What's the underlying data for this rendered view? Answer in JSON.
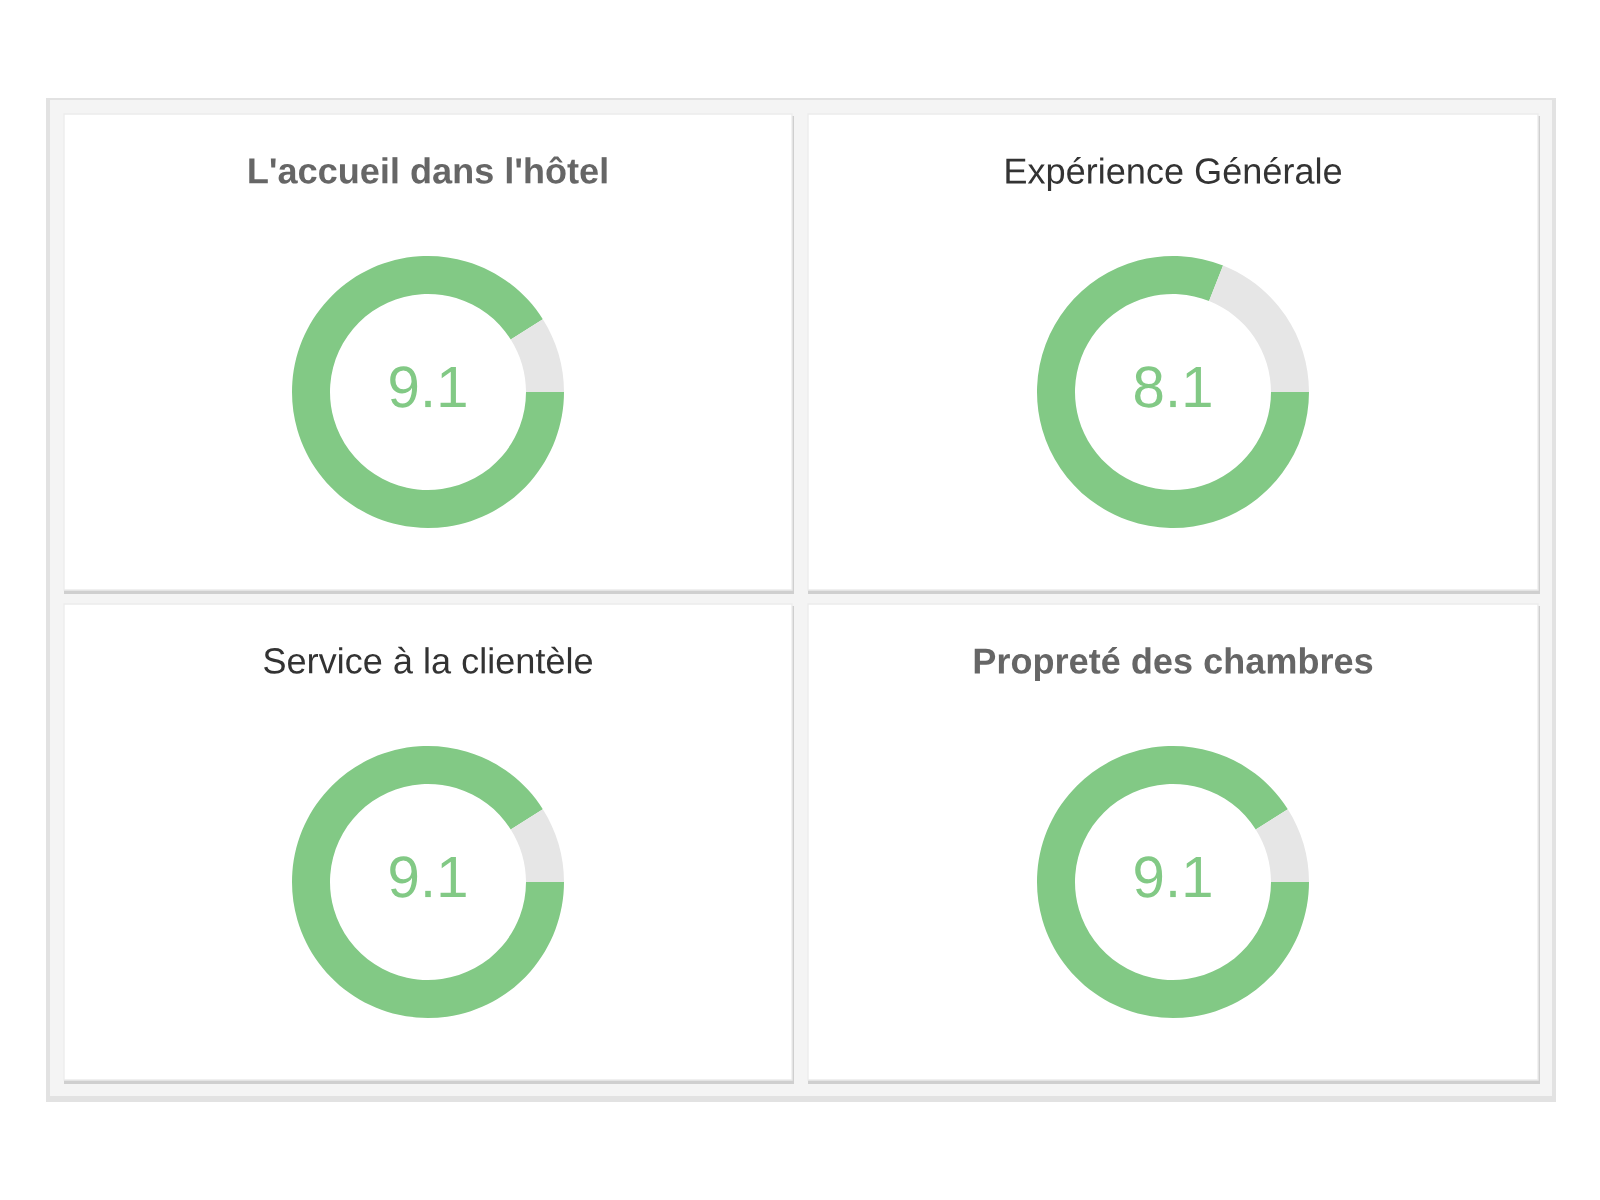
{
  "chart_data": [
    {
      "type": "donut",
      "title": "L'accueil dans l'hôtel",
      "categories": [
        null,
        null
      ],
      "values": [
        9.1,
        0.9
      ],
      "colors": [
        "#82c985",
        "#e6e6e6"
      ],
      "value_labels": [
        "9.1",
        null
      ]
    },
    {
      "type": "donut",
      "title": "Expérience Générale",
      "categories": [
        null,
        null
      ],
      "values": [
        8.1,
        1.9
      ],
      "colors": [
        "#82c985",
        "#e6e6e6"
      ],
      "value_labels": [
        "8.1",
        null
      ]
    },
    {
      "type": "donut",
      "title": "Service à la clientèle",
      "categories": [
        null,
        null
      ],
      "values": [
        9.1,
        0.9
      ],
      "colors": [
        "#82c985",
        "#e6e6e6"
      ],
      "value_labels": [
        "9.1",
        null
      ]
    },
    {
      "type": "donut",
      "title": "Propreté des chambres",
      "categories": [
        null,
        null
      ],
      "values": [
        9.1,
        0.9
      ],
      "colors": [
        "#82c985",
        "#e6e6e6"
      ],
      "value_labels": [
        "9.1",
        null
      ]
    }
  ]
}
